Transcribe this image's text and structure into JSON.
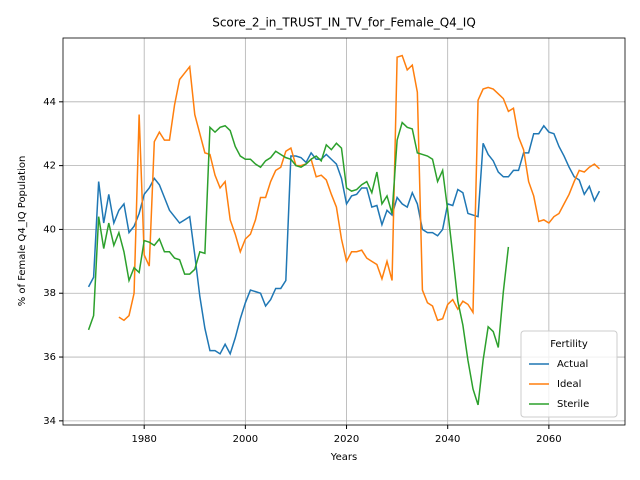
{
  "chart_data": {
    "type": "line",
    "title": "Score_2_in_TRUST_IN_TV_for_Female_Q4_IQ",
    "xlabel": "Years",
    "ylabel": "% of Female Q4_IQ Population",
    "legend_title": "Fertility",
    "legend": "lower right",
    "grid": true,
    "xlim": [
      1963.95,
      2075.05
    ],
    "ylim": [
      33.87,
      46.0
    ],
    "xticks": [
      1980,
      2000,
      2020,
      2040,
      2060
    ],
    "yticks": [
      34,
      36,
      38,
      40,
      42,
      44
    ],
    "x": [
      1969,
      1970,
      1971,
      1972,
      1973,
      1974,
      1975,
      1976,
      1977,
      1978,
      1979,
      1980,
      1981,
      1982,
      1983,
      1984,
      1985,
      1986,
      1987,
      1988,
      1989,
      1990,
      1991,
      1992,
      1993,
      1994,
      1995,
      1996,
      1997,
      1998,
      1999,
      2000,
      2001,
      2002,
      2003,
      2004,
      2005,
      2006,
      2007,
      2008,
      2009,
      2010,
      2011,
      2012,
      2013,
      2014,
      2015,
      2016,
      2017,
      2018,
      2019,
      2020,
      2021,
      2022,
      2023,
      2024,
      2025,
      2026,
      2027,
      2028,
      2029,
      2030,
      2031,
      2032,
      2033,
      2034,
      2035,
      2036,
      2037,
      2038,
      2039,
      2040,
      2041,
      2042,
      2043,
      2044,
      2045,
      2046,
      2047,
      2048,
      2049,
      2050,
      2051,
      2052,
      2053,
      2054,
      2055,
      2056,
      2057,
      2058,
      2059,
      2060,
      2061,
      2062,
      2063,
      2064,
      2065,
      2066,
      2067,
      2068,
      2069,
      2070
    ],
    "series": [
      {
        "name": "Actual",
        "color": "#1f77b4",
        "values": [
          38.2,
          38.5,
          41.5,
          40.2,
          41.1,
          40.2,
          40.6,
          40.8,
          39.9,
          40.1,
          40.5,
          41.1,
          41.3,
          41.6,
          41.4,
          41.0,
          40.6,
          40.4,
          40.2,
          40.3,
          40.4,
          39.2,
          37.9,
          36.9,
          36.2,
          36.2,
          36.1,
          36.4,
          36.1,
          36.6,
          37.2,
          37.7,
          38.1,
          38.05,
          38.0,
          37.6,
          37.8,
          38.15,
          38.15,
          38.4,
          42.3,
          42.3,
          42.25,
          42.1,
          42.4,
          42.2,
          42.2,
          42.35,
          42.2,
          42.05,
          41.6,
          40.8,
          41.05,
          41.1,
          41.3,
          41.3,
          40.7,
          40.75,
          40.15,
          40.6,
          40.45,
          41.0,
          40.8,
          40.7,
          41.15,
          40.8,
          40.0,
          39.9,
          39.9,
          39.8,
          40.0,
          40.8,
          40.75,
          41.25,
          41.15,
          40.5,
          40.45,
          40.4,
          42.7,
          42.35,
          42.15,
          41.8,
          41.65,
          41.65,
          41.85,
          41.85,
          42.4,
          42.4,
          43.0,
          43.0,
          43.25,
          43.05,
          43.0,
          42.6,
          42.3,
          41.95,
          41.65,
          41.55,
          41.1,
          41.35,
          40.9,
          41.2
        ]
      },
      {
        "name": "Ideal",
        "color": "#ff7f0e",
        "values": [
          null,
          null,
          null,
          null,
          null,
          null,
          37.25,
          37.15,
          37.3,
          38.0,
          43.6,
          39.2,
          38.85,
          42.75,
          43.05,
          42.8,
          42.8,
          43.9,
          44.7,
          44.9,
          45.1,
          43.6,
          43.0,
          42.4,
          42.35,
          41.7,
          41.3,
          41.5,
          40.3,
          39.85,
          39.3,
          39.7,
          39.85,
          40.3,
          41.0,
          41.0,
          41.5,
          41.85,
          41.95,
          42.45,
          42.55,
          42.0,
          42.0,
          42.05,
          42.2,
          41.65,
          41.7,
          41.55,
          41.1,
          40.7,
          39.7,
          39.0,
          39.3,
          39.3,
          39.35,
          39.1,
          39.0,
          38.9,
          38.45,
          39.0,
          38.4,
          45.4,
          45.45,
          45.0,
          45.15,
          44.3,
          38.1,
          37.7,
          37.6,
          37.15,
          37.2,
          37.65,
          37.8,
          37.5,
          37.75,
          37.65,
          37.4,
          44.05,
          44.4,
          44.45,
          44.4,
          44.25,
          44.1,
          43.7,
          43.8,
          42.9,
          42.5,
          41.5,
          41.05,
          40.25,
          40.3,
          40.2,
          40.4,
          40.5,
          40.8,
          41.1,
          41.5,
          41.85,
          41.8,
          41.95,
          42.05,
          41.9
        ]
      },
      {
        "name": "Sterile",
        "color": "#2ca02c",
        "values": [
          36.85,
          37.3,
          40.4,
          39.4,
          40.2,
          39.5,
          39.9,
          39.3,
          38.4,
          38.8,
          38.65,
          39.65,
          39.6,
          39.5,
          39.7,
          39.3,
          39.3,
          39.1,
          39.05,
          38.6,
          38.6,
          38.75,
          39.3,
          39.25,
          43.2,
          43.05,
          43.2,
          43.25,
          43.1,
          42.6,
          42.3,
          42.2,
          42.2,
          42.05,
          41.95,
          42.15,
          42.25,
          42.45,
          42.35,
          42.25,
          42.2,
          42.0,
          41.95,
          42.05,
          42.2,
          42.3,
          42.15,
          42.65,
          42.5,
          42.7,
          42.55,
          41.3,
          41.2,
          41.25,
          41.4,
          41.5,
          41.15,
          41.8,
          40.8,
          41.05,
          40.5,
          42.8,
          43.35,
          43.2,
          43.15,
          42.4,
          42.35,
          42.3,
          42.2,
          41.5,
          41.85,
          40.6,
          39.2,
          37.75,
          37.0,
          35.9,
          35.0,
          34.5,
          35.9,
          36.95,
          36.8,
          36.3,
          38.05,
          39.45,
          null,
          null,
          null,
          null,
          null,
          null,
          null,
          null,
          null,
          null,
          null,
          null,
          null,
          null,
          null,
          null,
          null,
          null
        ]
      }
    ]
  }
}
